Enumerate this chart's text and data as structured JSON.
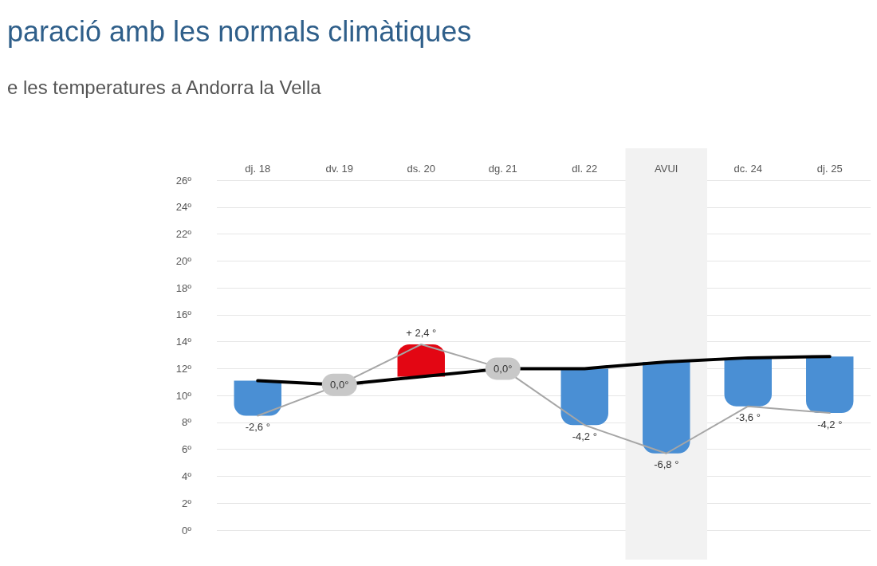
{
  "chart_data": {
    "type": "bar",
    "title": "paració amb les normals climàtiques",
    "subtitle": "e les temperatures a Andorra la Vella",
    "categories": [
      "dj. 18",
      "dv. 19",
      "ds. 20",
      "dg. 21",
      "dl. 22",
      "AVUI",
      "dc. 24",
      "dj. 25"
    ],
    "series": [
      {
        "base": [
          11.1,
          10.8,
          11.4,
          12.0,
          12.0,
          12.5,
          12.8,
          12.9
        ],
        "values": [
          -2.6,
          0.0,
          2.4,
          0.0,
          -4.2,
          -6.8,
          -3.6,
          -4.2
        ],
        "colors": [
          "#4a8fd4",
          "#c8c8c8",
          "#e30613",
          "#c8c8c8",
          "#4a8fd4",
          "#4a8fd4",
          "#4a8fd4",
          "#4a8fd4"
        ],
        "value_labels": [
          "-2,6 °",
          "0,0°",
          "+ 2,4 °",
          "0,0°",
          "-4,2 °",
          "-6,8 °",
          "-3,6 °",
          "-4,2 °"
        ]
      },
      {
        "type": "line",
        "color": "#000000",
        "values": [
          11.1,
          10.8,
          11.4,
          12.0,
          12.0,
          12.5,
          12.8,
          12.9
        ]
      },
      {
        "type": "line",
        "color": "#a6a6a6",
        "values": [
          8.5,
          10.8,
          13.8,
          12.0,
          7.8,
          5.7,
          9.2,
          8.7
        ]
      }
    ],
    "bands": [
      {
        "axis": "x",
        "from": "AVUI",
        "to": "AVUI",
        "color": "#f2f2f2"
      }
    ],
    "ylim": [
      0,
      26
    ],
    "yticks": [
      {
        "value": 0,
        "label": "0º"
      },
      {
        "value": 2,
        "label": "2º"
      },
      {
        "value": 4,
        "label": "4º"
      },
      {
        "value": 6,
        "label": "6º"
      },
      {
        "value": 8,
        "label": "8º"
      },
      {
        "value": 10,
        "label": "10º"
      },
      {
        "value": 12,
        "label": "12º"
      },
      {
        "value": 14,
        "label": "14º"
      },
      {
        "value": 16,
        "label": "16º"
      },
      {
        "value": 18,
        "label": "18º"
      },
      {
        "value": 20,
        "label": "20º"
      },
      {
        "value": 22,
        "label": "22º"
      },
      {
        "value": 24,
        "label": "24º"
      },
      {
        "value": 26,
        "label": "26º"
      }
    ],
    "grid": "y",
    "marker": "none"
  }
}
